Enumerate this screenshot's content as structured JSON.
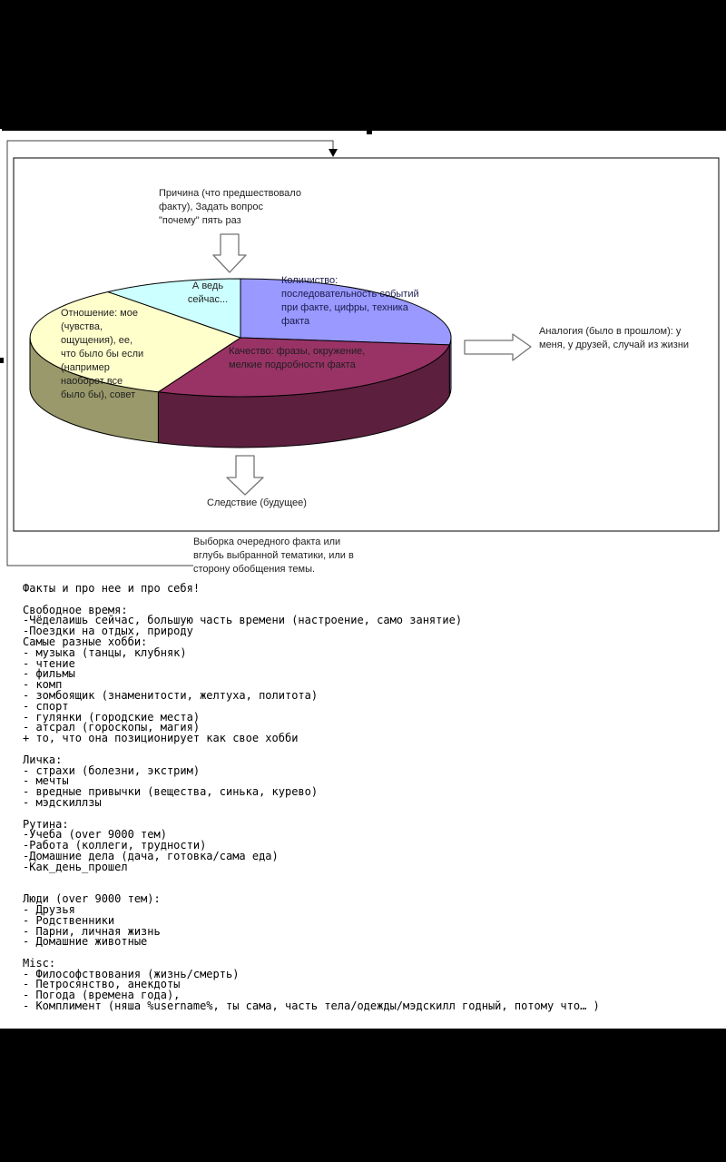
{
  "page": {
    "background": "#ffffff",
    "top_bar_color": "#000000",
    "bottom_bar_color": "#000000"
  },
  "diagram": {
    "labels": {
      "cause": "Причина (что предшествовало\nфакту), Задать вопрос\n\"почему\" пять раз",
      "analogy": "Аналогия (было в прошлом): у\nменя, у друзей, случай из жизни",
      "consequence": "Следствие (будущее)",
      "selection": "Выборка очередного факта или\nвглубь выбранной тематики, или в\nсторону обобщения темы."
    },
    "arrows": [
      {
        "name": "down-arrow-cause",
        "direction": "down"
      },
      {
        "name": "right-arrow-analogy",
        "direction": "right"
      },
      {
        "name": "down-arrow-consequence",
        "direction": "down"
      }
    ],
    "line_color": "#404040",
    "arrow_outline_color": "#757575"
  },
  "chart_data": {
    "type": "pie",
    "title": "",
    "legend_position": "none",
    "slices": [
      {
        "label": "Количиство: последовательность событий при факте, цифры, техника факта",
        "display_label": "Количиство:\nпоследовательность событий\nпри факте, цифры, техника\nфакта",
        "color": "#9999FF",
        "side_color": "#7E7EC0",
        "start_deg": 270,
        "end_deg": 367,
        "value_pct": 27
      },
      {
        "label": "Качество: фразы, окружение, мелкие подробности факта",
        "display_label": "Качество: фразы, окружение,\nмелкие подробности факта",
        "color": "#993366",
        "side_color": "#5C1F3E",
        "start_deg": 7,
        "end_deg": 113,
        "value_pct": 29
      },
      {
        "label": "Отношение: мое (чувства, ощущения), ее, что было бы если (например наоборот все было бы), совет",
        "display_label": "Отношение: мое\n(чувства,\nощущения), ее,\nчто было бы если\n(например\nнаоборот все\nбыло бы), совет",
        "color": "#FFFFCC",
        "side_color": "#99996B",
        "start_deg": 113,
        "end_deg": 231,
        "value_pct": 33
      },
      {
        "label": "А ведь сейчас...",
        "display_label": "А ведь\nсейчас...",
        "color": "#CCFFFF",
        "side_color": "#A8D4D4",
        "start_deg": 231,
        "end_deg": 270,
        "value_pct": 11
      }
    ]
  },
  "body_text": {
    "lines": [
      "Факты и про нее и про себя!",
      "",
      "Свободное время:",
      "-Чёделаишь сейчас, большую часть времени (настроение, само занятие)",
      "-Поездки на отдых, природу",
      "Самые разные хобби:",
      "- музыка (танцы, клубняк)",
      "- чтение",
      "- фильмы",
      "- комп",
      "- зомбоящик (знаменитости, желтуха, политота)",
      "- спорт",
      "- гулянки (городские места)",
      "- атсрал (гороскопы, магия)",
      "+ то, что она позиционирует как свое хобби",
      "",
      "Личка:",
      "- страхи (болезни, экстрим)",
      "- мечты",
      "- вредные привычки (вещества, синька, курево)",
      "- мэдскиллзы",
      "",
      "Рутина:",
      "-Учеба (over 9000 тем)",
      "-Работа (коллеги, трудности)",
      "-Домашние дела (дача, готовка/сама еда)",
      "-Как_день_прошел",
      "",
      "",
      "Люди (over 9000 тем):",
      "- Друзья",
      "- Родственники",
      "- Парни, личная жизнь",
      "- Домашние животные",
      "",
      "Misc:",
      "- Философствования (жизнь/смерть)",
      "- Петросянство, анекдоты",
      "- Погода (времена года),",
      "- Комплимент (няша %username%, ты сама, часть тела/одежды/мэдскилл годный, потому что… )"
    ]
  }
}
